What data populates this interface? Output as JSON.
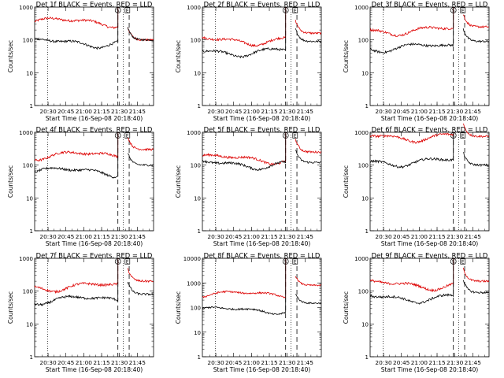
{
  "chart_data": [
    {
      "type": "line",
      "title": "Det 1f BLACK = Events, RED = LLD",
      "xlabel": "Start Time (16-Sep-08 20:18:40)",
      "ylabel": "Counts/sec",
      "yscale": "log",
      "ylim": [
        1,
        1000
      ],
      "xlim_min": [
        20,
        22
      ],
      "yticks": [
        "1",
        "10",
        "100",
        "1000"
      ],
      "xticks": [
        "20:30",
        "20:45",
        "21:00",
        "21:15",
        "21:30",
        "21:45"
      ],
      "markers": [
        {
          "label": "S",
          "t_min": 70
        },
        {
          "label": "E",
          "t_min": 78
        }
      ],
      "series": [
        {
          "color": "red",
          "level": 360,
          "post": 100
        },
        {
          "color": "black",
          "level": 85,
          "post": 100
        }
      ]
    },
    {
      "type": "line",
      "title": "Det 2f BLACK = Events, RED = LLD",
      "xlabel": "Start Time (16-Sep-08 20:18:40)",
      "ylabel": "Counts/sec",
      "yscale": "log",
      "ylim": [
        1,
        1000
      ],
      "xlim_min": [
        20,
        22
      ],
      "yticks": [
        "1",
        "10",
        "100",
        "1000"
      ],
      "xticks": [
        "20:30",
        "20:45",
        "21:00",
        "21:15",
        "21:30",
        "21:45"
      ],
      "markers": [
        {
          "label": "S",
          "t_min": 70
        },
        {
          "label": "E",
          "t_min": 78
        }
      ],
      "series": [
        {
          "color": "red",
          "level": 100,
          "post": 160
        },
        {
          "color": "black",
          "level": 45,
          "post": 90
        }
      ]
    },
    {
      "type": "line",
      "title": "Det 3f BLACK = Events, RED = LLD",
      "xlabel": "Start Time (16-Sep-08 20:18:40)",
      "ylabel": "Counts/sec",
      "yscale": "log",
      "ylim": [
        1,
        1000
      ],
      "xlim_min": [
        20,
        22
      ],
      "yticks": [
        "1",
        "10",
        "100",
        "1000"
      ],
      "xticks": [
        "20:30",
        "20:45",
        "21:00",
        "21:15",
        "21:30",
        "21:45"
      ],
      "markers": [
        {
          "label": "S",
          "t_min": 70
        },
        {
          "label": "E",
          "t_min": 78
        }
      ],
      "series": [
        {
          "color": "red",
          "level": 200,
          "post": 250
        },
        {
          "color": "black",
          "level": 60,
          "post": 90
        }
      ]
    },
    {
      "type": "line",
      "title": "Det 4f BLACK = Events, RED = LLD",
      "xlabel": "Start Time (16-Sep-08 20:18:40)",
      "ylabel": "Counts/sec",
      "yscale": "log",
      "ylim": [
        1,
        1000
      ],
      "xlim_min": [
        20,
        22
      ],
      "yticks": [
        "1",
        "10",
        "100",
        "1000"
      ],
      "xticks": [
        "20:30",
        "20:45",
        "21:00",
        "21:15",
        "21:30",
        "21:45"
      ],
      "markers": [
        {
          "label": "S",
          "t_min": 70
        },
        {
          "label": "E",
          "t_min": 78
        }
      ],
      "series": [
        {
          "color": "red",
          "level": 200,
          "post": 300
        },
        {
          "color": "black",
          "level": 65,
          "post": 100
        }
      ]
    },
    {
      "type": "line",
      "title": "Det 5f BLACK = Events, RED = LLD",
      "xlabel": "Start Time (16-Sep-08 20:18:40)",
      "ylabel": "Counts/sec",
      "yscale": "log",
      "ylim": [
        1,
        1000
      ],
      "xlim_min": [
        20,
        22
      ],
      "yticks": [
        "1",
        "10",
        "100",
        "1000"
      ],
      "xticks": [
        "20:30",
        "20:45",
        "21:00",
        "21:15",
        "21:30",
        "21:45"
      ],
      "markers": [
        {
          "label": "S",
          "t_min": 70
        },
        {
          "label": "E",
          "t_min": 78
        }
      ],
      "series": [
        {
          "color": "red",
          "level": 160,
          "post": 250
        },
        {
          "color": "black",
          "level": 110,
          "post": 120
        }
      ]
    },
    {
      "type": "line",
      "title": "Det 6f BLACK = Events, RED = LLD",
      "xlabel": "Start Time (16-Sep-08 20:18:40)",
      "ylabel": "Counts/sec",
      "yscale": "log",
      "ylim": [
        1,
        1000
      ],
      "xlim_min": [
        20,
        22
      ],
      "yticks": [
        "1",
        "10",
        "100",
        "1000"
      ],
      "xticks": [
        "20:30",
        "20:45",
        "21:00",
        "21:15",
        "21:30",
        "21:45"
      ],
      "markers": [
        {
          "label": "S",
          "t_min": 70
        },
        {
          "label": "E",
          "t_min": 78
        }
      ],
      "series": [
        {
          "color": "red",
          "level": 750,
          "post": 750
        },
        {
          "color": "black",
          "level": 130,
          "post": 100
        }
      ]
    },
    {
      "type": "line",
      "title": "Det 7f BLACK = Events, RED = LLD",
      "xlabel": "Start Time (16-Sep-08 20:18:40)",
      "ylabel": "Counts/sec",
      "yscale": "log",
      "ylim": [
        1,
        1000
      ],
      "xlim_min": [
        20,
        22
      ],
      "yticks": [
        "1",
        "10",
        "100",
        "1000"
      ],
      "xticks": [
        "20:30",
        "20:45",
        "21:00",
        "21:15",
        "21:30",
        "21:45"
      ],
      "markers": [
        {
          "label": "S",
          "t_min": 70
        },
        {
          "label": "E",
          "t_min": 78
        }
      ],
      "series": [
        {
          "color": "red",
          "level": 140,
          "post": 200
        },
        {
          "color": "black",
          "level": 55,
          "post": 80
        }
      ]
    },
    {
      "type": "line",
      "title": "Det 8f BLACK = Events, RED = LLD",
      "xlabel": "Start Time (16-Sep-08 20:18:40)",
      "ylabel": "Counts/sec",
      "yscale": "log",
      "ylim": [
        1,
        10000
      ],
      "xlim_min": [
        20,
        22
      ],
      "yticks": [
        "1",
        "10",
        "100",
        "1000",
        "10000"
      ],
      "xticks": [
        "20:30",
        "20:45",
        "21:00",
        "21:15",
        "21:30",
        "21:45"
      ],
      "markers": [
        {
          "label": "S",
          "t_min": 70
        },
        {
          "label": "E",
          "t_min": 78
        }
      ],
      "series": [
        {
          "color": "red",
          "level": 350,
          "post": 800
        },
        {
          "color": "black",
          "level": 80,
          "post": 150
        }
      ]
    },
    {
      "type": "line",
      "title": "Det 9f BLACK = Events, RED = LLD",
      "xlabel": "Start Time (16-Sep-08 20:18:40)",
      "ylabel": "Counts/sec",
      "yscale": "log",
      "ylim": [
        1,
        1000
      ],
      "xlim_min": [
        20,
        22
      ],
      "yticks": [
        "1",
        "10",
        "100",
        "1000"
      ],
      "xticks": [
        "20:30",
        "20:45",
        "21:00",
        "21:15",
        "21:30",
        "21:45"
      ],
      "markers": [
        {
          "label": "S",
          "t_min": 70
        },
        {
          "label": "E",
          "t_min": 78
        }
      ],
      "series": [
        {
          "color": "red",
          "level": 160,
          "post": 200
        },
        {
          "color": "black",
          "level": 65,
          "post": 90
        }
      ]
    }
  ]
}
